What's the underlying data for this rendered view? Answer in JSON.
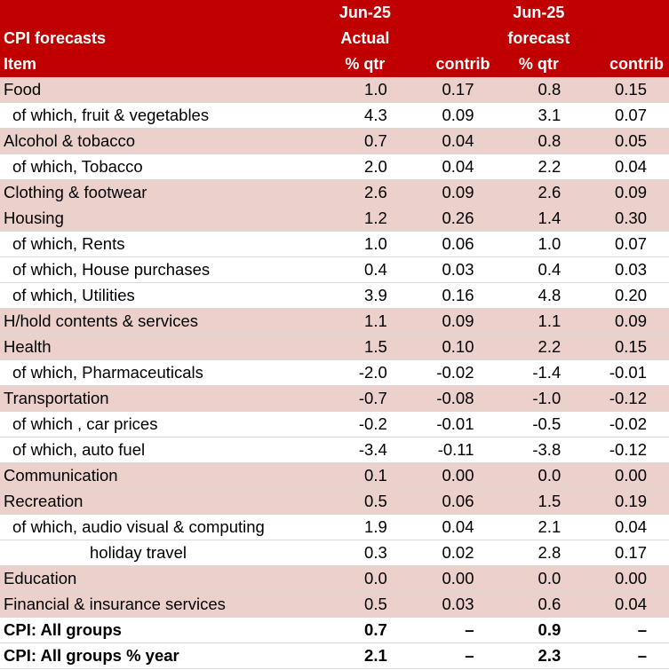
{
  "header": {
    "row1": [
      "",
      "Jun-25",
      "",
      "Jun-25",
      ""
    ],
    "row2": [
      "CPI forecasts",
      "Actual",
      "",
      "forecast",
      ""
    ],
    "row3": [
      "Item",
      "% qtr",
      "contrib",
      "% qtr",
      "contrib"
    ]
  },
  "rows": [
    {
      "label": "Food",
      "type": "main",
      "v": [
        "1.0",
        "0.17",
        "0.8",
        "0.15"
      ]
    },
    {
      "label": "of which, fruit & vegetables",
      "type": "sub",
      "v": [
        "4.3",
        "0.09",
        "3.1",
        "0.07"
      ]
    },
    {
      "label": "Alcohol & tobacco",
      "type": "main",
      "v": [
        "0.7",
        "0.04",
        "0.8",
        "0.05"
      ]
    },
    {
      "label": "of which, Tobacco",
      "type": "sub",
      "v": [
        "2.0",
        "0.04",
        "2.2",
        "0.04"
      ]
    },
    {
      "label": "Clothing & footwear",
      "type": "main",
      "v": [
        "2.6",
        "0.09",
        "2.6",
        "0.09"
      ]
    },
    {
      "label": "Housing",
      "type": "main",
      "v": [
        "1.2",
        "0.26",
        "1.4",
        "0.30"
      ]
    },
    {
      "label": "of which, Rents",
      "type": "sub",
      "v": [
        "1.0",
        "0.06",
        "1.0",
        "0.07"
      ]
    },
    {
      "label": "of which, House purchases",
      "type": "sub",
      "v": [
        "0.4",
        "0.03",
        "0.4",
        "0.03"
      ]
    },
    {
      "label": "of which, Utilities",
      "type": "sub",
      "v": [
        "3.9",
        "0.16",
        "4.8",
        "0.20"
      ]
    },
    {
      "label": "H/hold contents & services",
      "type": "main",
      "v": [
        "1.1",
        "0.09",
        "1.1",
        "0.09"
      ]
    },
    {
      "label": "Health",
      "type": "main",
      "v": [
        "1.5",
        "0.10",
        "2.2",
        "0.15"
      ]
    },
    {
      "label": "of which, Pharmaceuticals",
      "type": "sub",
      "v": [
        "-2.0",
        "-0.02",
        "-1.4",
        "-0.01"
      ]
    },
    {
      "label": "Transportation",
      "type": "main",
      "v": [
        "-0.7",
        "-0.08",
        "-1.0",
        "-0.12"
      ]
    },
    {
      "label": "of which , car prices",
      "type": "sub",
      "v": [
        "-0.2",
        "-0.01",
        "-0.5",
        "-0.02"
      ]
    },
    {
      "label": "of which, auto fuel",
      "type": "sub",
      "v": [
        "-3.4",
        "-0.11",
        "-3.8",
        "-0.12"
      ]
    },
    {
      "label": "Communication",
      "type": "main",
      "v": [
        "0.1",
        "0.00",
        "0.0",
        "0.00"
      ]
    },
    {
      "label": "Recreation",
      "type": "main",
      "v": [
        "0.5",
        "0.06",
        "1.5",
        "0.19"
      ]
    },
    {
      "label": "of which, audio visual & computing",
      "type": "sub",
      "v": [
        "1.9",
        "0.04",
        "2.1",
        "0.04"
      ]
    },
    {
      "label": "holiday travel",
      "type": "sub2",
      "v": [
        "0.3",
        "0.02",
        "2.8",
        "0.17"
      ]
    },
    {
      "label": "Education",
      "type": "main",
      "v": [
        "0.0",
        "0.00",
        "0.0",
        "0.00"
      ]
    },
    {
      "label": "Financial & insurance services",
      "type": "main",
      "v": [
        "0.5",
        "0.03",
        "0.6",
        "0.04"
      ]
    },
    {
      "label": "CPI: All groups",
      "type": "total",
      "v": [
        "0.7",
        "–",
        "0.9",
        "–"
      ]
    },
    {
      "label": "CPI: All groups % year",
      "type": "total",
      "v": [
        "2.1",
        "–",
        "2.3",
        "–"
      ]
    }
  ]
}
